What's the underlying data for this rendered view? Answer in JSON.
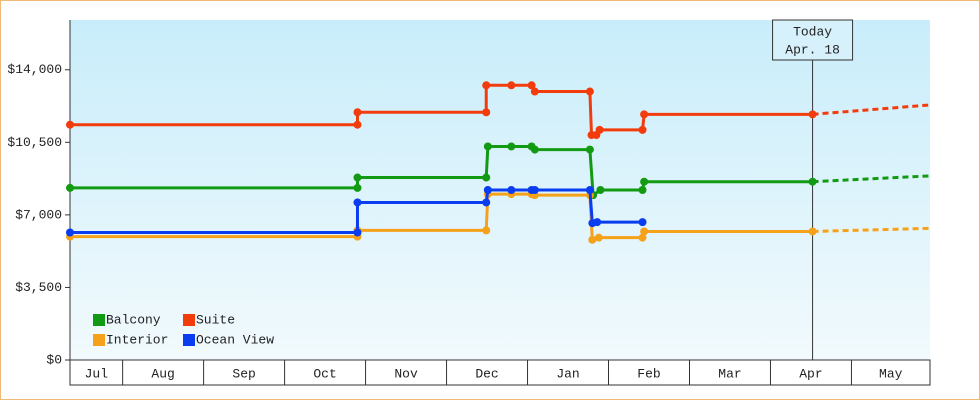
{
  "chart_data": {
    "type": "step-line",
    "categories": [
      "Jul",
      "Aug",
      "Sep",
      "Oct",
      "Nov",
      "Dec",
      "Jan",
      "Feb",
      "Mar",
      "Apr",
      "May"
    ],
    "xlim": [
      0.35,
      10.97
    ],
    "xticks": [
      1,
      2,
      3,
      4,
      5,
      6,
      7,
      8,
      9,
      10
    ],
    "ylim": [
      0,
      16400
    ],
    "yticks": [
      {
        "value": 0,
        "label": "$0"
      },
      {
        "value": 3500,
        "label": "$3,500"
      },
      {
        "value": 7000,
        "label": "$7,000"
      },
      {
        "value": 10500,
        "label": "$10,500"
      },
      {
        "value": 14000,
        "label": "$14,000"
      }
    ],
    "marker": {
      "x": 9.52,
      "label": "Today",
      "sublabel": "Apr. 18"
    },
    "series": [
      {
        "name": "Balcony",
        "color": "#139a13",
        "x": [
          0.35,
          3.9,
          3.9,
          5.49,
          5.51,
          5.8,
          6.05,
          6.09,
          6.77,
          6.81,
          6.9,
          7.42,
          7.44,
          9.52
        ],
        "values": [
          8300,
          8300,
          8800,
          8800,
          10300,
          10300,
          10300,
          10150,
          10150,
          7950,
          8200,
          8200,
          8600,
          8600
        ],
        "forecast": {
          "x": [
            9.52,
            10.96
          ],
          "values": [
            8600,
            8880
          ]
        }
      },
      {
        "name": "Suite",
        "color": "#f23c0c",
        "x": [
          0.35,
          3.9,
          3.9,
          5.49,
          5.49,
          5.8,
          6.05,
          6.09,
          6.77,
          6.79,
          6.85,
          6.89,
          7.42,
          7.44,
          9.52
        ],
        "values": [
          11350,
          11350,
          11950,
          11950,
          13250,
          13250,
          13250,
          12950,
          12950,
          10850,
          10850,
          11100,
          11100,
          11850,
          11850
        ],
        "forecast": {
          "x": [
            9.52,
            10.96
          ],
          "values": [
            11850,
            12300
          ]
        }
      },
      {
        "name": "Interior",
        "color": "#f5a21a",
        "x": [
          0.35,
          3.9,
          3.9,
          5.49,
          5.51,
          5.8,
          6.05,
          6.09,
          6.77,
          6.8,
          6.88,
          7.42,
          7.44,
          9.52
        ],
        "values": [
          5950,
          5950,
          6250,
          6250,
          8000,
          8000,
          8000,
          7950,
          7950,
          5800,
          5900,
          5900,
          6200,
          6200
        ],
        "forecast": {
          "x": [
            9.52,
            10.96
          ],
          "values": [
            6200,
            6350
          ]
        }
      },
      {
        "name": "Ocean View",
        "color": "#0a3cf0",
        "x": [
          0.35,
          3.9,
          3.9,
          5.49,
          5.51,
          5.8,
          6.05,
          6.09,
          6.77,
          6.8,
          6.86,
          7.42
        ],
        "values": [
          6150,
          6150,
          7600,
          7600,
          8200,
          8200,
          8200,
          8200,
          8200,
          6600,
          6650,
          6650
        ]
      }
    ]
  }
}
